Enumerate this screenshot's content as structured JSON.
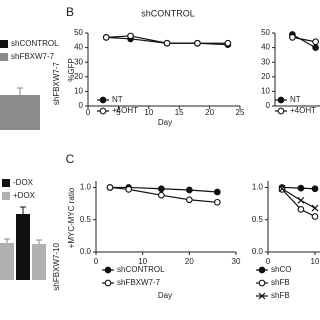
{
  "chart_data": [
    {
      "type": "bar",
      "categories": [
        "shFBXW7-7"
      ],
      "series": [
        {
          "name": "shCONTROL",
          "color": "#111111",
          "values": [
            null
          ],
          "errors": [
            null
          ]
        },
        {
          "name": "shFBXW7-7",
          "color": "#8c8c8c",
          "values": [
            0.35
          ],
          "errors": [
            0.07
          ]
        }
      ],
      "ylim": [
        0,
        1
      ]
    },
    {
      "type": "bar",
      "categories": [
        null,
        "shFBXW7-10"
      ],
      "series": [
        {
          "name": "-DOX",
          "color": "#111111",
          "values": [
            null,
            0.66
          ],
          "errors": [
            null,
            0.07
          ]
        },
        {
          "name": "+DOX",
          "color": "#b0b0b0",
          "values": [
            0.37,
            0.36
          ],
          "errors": [
            0.04,
            0.04
          ]
        }
      ],
      "ylim": [
        0,
        1
      ]
    },
    {
      "type": "line",
      "panel": "B",
      "title": "shCONTROL",
      "xlabel": "Day",
      "ylabel": "%GFP",
      "x": [
        3,
        7,
        13,
        18,
        23
      ],
      "series": [
        {
          "name": "NT",
          "color": "#111111",
          "marker": "filled",
          "values": [
            47,
            46,
            43,
            43,
            42
          ]
        },
        {
          "name": "+4OHT",
          "color": "#111111",
          "marker": "open",
          "values": [
            47,
            48,
            43,
            43,
            43
          ]
        }
      ],
      "xlim": [
        0,
        25
      ],
      "xticks": [
        0,
        5,
        10,
        15,
        20,
        25
      ],
      "ylim": [
        0,
        50
      ],
      "yticks": [
        0,
        10,
        20,
        30,
        40,
        50
      ]
    },
    {
      "type": "line",
      "x": [
        3,
        7
      ],
      "series": [
        {
          "name": "NT",
          "color": "#111111",
          "marker": "filled",
          "values": [
            49,
            40
          ]
        },
        {
          "name": "+4OHT",
          "color": "#111111",
          "marker": "open",
          "values": [
            47,
            44
          ]
        }
      ],
      "xlim": [
        0,
        25
      ],
      "ylim": [
        0,
        50
      ],
      "yticks": [
        0,
        10,
        20,
        30,
        40,
        50
      ]
    },
    {
      "type": "line",
      "panel": "C",
      "xlabel": "Day",
      "ylabel": "+MYC-MYC ratio",
      "x": [
        3,
        7,
        14,
        20,
        26
      ],
      "series": [
        {
          "name": "shCONTROL",
          "color": "#111111",
          "marker": "filled",
          "values": [
            1.0,
            1.0,
            0.98,
            0.96,
            0.93
          ]
        },
        {
          "name": "shFBXW7-7",
          "color": "#111111",
          "marker": "open",
          "values": [
            1.0,
            0.97,
            0.88,
            0.81,
            0.77
          ]
        }
      ],
      "xlim": [
        0,
        30
      ],
      "xticks": [
        0,
        10,
        20,
        30
      ],
      "ylim": [
        0,
        1.1
      ],
      "yticks": [
        {
          "value": 0,
          "label": "0.0"
        },
        {
          "value": 0.5,
          "label": "0.5"
        },
        {
          "value": 1,
          "label": "1.0"
        }
      ]
    },
    {
      "type": "line",
      "x": [
        3,
        7,
        10
      ],
      "series": [
        {
          "name": "shCO",
          "color": "#111111",
          "marker": "filled",
          "values": [
            1.0,
            0.99,
            0.98
          ]
        },
        {
          "name": "shFB",
          "color": "#111111",
          "marker": "open",
          "values": [
            0.97,
            0.66,
            0.55
          ]
        },
        {
          "name": "shFB",
          "color": "#111111",
          "marker": "x",
          "values": [
            0.98,
            0.8,
            0.68
          ]
        }
      ],
      "xlim": [
        0,
        30
      ],
      "xticks": [
        0,
        10
      ],
      "ylim": [
        0,
        1.1
      ],
      "yticks": [
        {
          "value": 0,
          "label": "0.0"
        },
        {
          "value": 0.5,
          "label": "0.5"
        },
        {
          "value": 1,
          "label": "1.0"
        }
      ]
    }
  ]
}
